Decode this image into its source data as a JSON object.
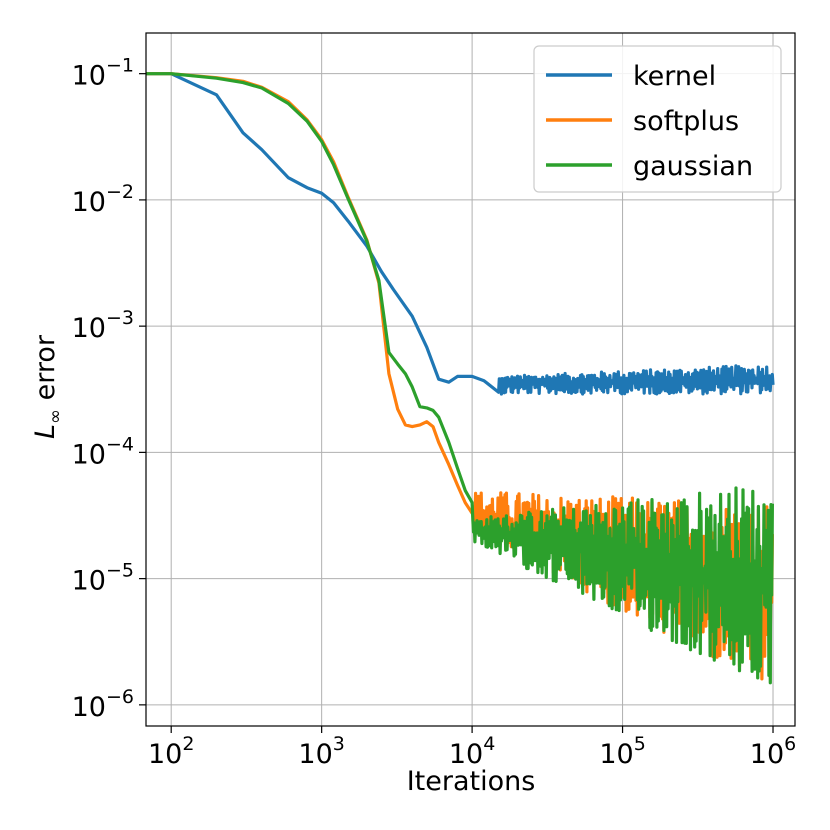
{
  "chart_data": {
    "type": "line",
    "title": "",
    "xlabel": "Iterations",
    "ylabel_main": "L",
    "ylabel_sub": "∞",
    "ylabel_rest": " error",
    "x_scale": "log",
    "y_scale": "log",
    "xlim": [
      68,
      1400000
    ],
    "ylim": [
      6.8e-07,
      0.21
    ],
    "grid": true,
    "legend_position": "top-right",
    "x_ticks": [
      {
        "value": 100,
        "base": "10",
        "exp": "2"
      },
      {
        "value": 1000,
        "base": "10",
        "exp": "3"
      },
      {
        "value": 10000,
        "base": "10",
        "exp": "4"
      },
      {
        "value": 100000,
        "base": "10",
        "exp": "5"
      },
      {
        "value": 1000000,
        "base": "10",
        "exp": "6"
      }
    ],
    "y_ticks": [
      {
        "value": 0.1,
        "base": "10",
        "exp": "−1"
      },
      {
        "value": 0.01,
        "base": "10",
        "exp": "−2"
      },
      {
        "value": 0.001,
        "base": "10",
        "exp": "−3"
      },
      {
        "value": 0.0001,
        "base": "10",
        "exp": "−4"
      },
      {
        "value": 1e-05,
        "base": "10",
        "exp": "−5"
      },
      {
        "value": 1e-06,
        "base": "10",
        "exp": "−6"
      }
    ],
    "series": [
      {
        "name": "kernel",
        "color": "#1f77b4",
        "x": [
          68,
          100,
          200,
          300,
          400,
          600,
          800,
          1000,
          1200,
          1500,
          2000,
          2500,
          3000,
          4000,
          5000,
          6000,
          7000,
          8000,
          10000,
          12000,
          15000
        ],
        "values": [
          0.1,
          0.1,
          0.068,
          0.034,
          0.025,
          0.015,
          0.0125,
          0.0113,
          0.0095,
          0.0068,
          0.0043,
          0.0027,
          0.00195,
          0.0012,
          0.00068,
          0.00038,
          0.00036,
          0.0004,
          0.0004,
          0.00037,
          0.0003
        ],
        "noise": {
          "x_start": 15000,
          "x_end": 1000000,
          "center_start": 0.00035,
          "center_end": 0.00038,
          "lower_start": 0.00029,
          "lower_end": 0.00029,
          "upper_start": 0.0004,
          "upper_end": 0.0005
        }
      },
      {
        "name": "softplus",
        "color": "#ff7f0e",
        "x": [
          68,
          100,
          200,
          300,
          400,
          600,
          800,
          1000,
          1200,
          1500,
          2000,
          2400,
          2800,
          3200,
          3600,
          4000,
          4500,
          5000,
          5500,
          6000,
          7000,
          8000,
          9000,
          10000
        ],
        "values": [
          0.1,
          0.1,
          0.093,
          0.087,
          0.078,
          0.06,
          0.043,
          0.03,
          0.02,
          0.0105,
          0.0048,
          0.0022,
          0.00042,
          0.00022,
          0.000165,
          0.00016,
          0.000165,
          0.000175,
          0.00016,
          0.00012,
          8e-05,
          5.5e-05,
          4e-05,
          3.3e-05
        ],
        "noise": {
          "x_start": 10000,
          "x_end": 1000000,
          "center_start": 3e-05,
          "center_end": 7e-06,
          "lower_start": 2.5e-05,
          "lower_end": 1.2e-06,
          "upper_start": 5e-05,
          "upper_end": 4e-05
        }
      },
      {
        "name": "gaussian",
        "color": "#2ca02c",
        "x": [
          68,
          100,
          200,
          300,
          400,
          600,
          800,
          1000,
          1200,
          1500,
          2000,
          2400,
          2800,
          3200,
          3600,
          4000,
          4500,
          5000,
          5500,
          6000,
          7000,
          8000,
          9000,
          10000
        ],
        "values": [
          0.1,
          0.1,
          0.092,
          0.085,
          0.077,
          0.058,
          0.042,
          0.029,
          0.019,
          0.0102,
          0.0047,
          0.0023,
          0.00062,
          0.0005,
          0.00042,
          0.00033,
          0.00023,
          0.000225,
          0.000215,
          0.00019,
          0.00012,
          7.5e-05,
          5e-05,
          4e-05
        ],
        "noise": {
          "x_start": 10000,
          "x_end": 1000000,
          "center_start": 2.5e-05,
          "center_end": 8e-06,
          "lower_start": 2e-05,
          "lower_end": 1.2e-06,
          "upper_start": 3e-05,
          "upper_end": 6e-05
        }
      }
    ]
  }
}
